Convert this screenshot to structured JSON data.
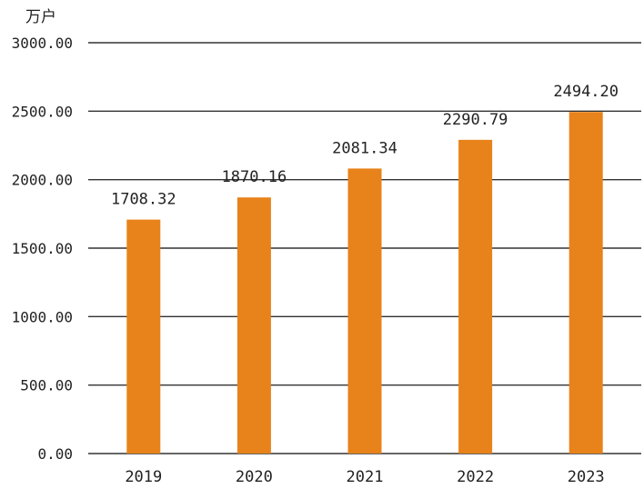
{
  "chart_data": {
    "type": "bar",
    "unit": "万户",
    "categories": [
      "2019",
      "2020",
      "2021",
      "2022",
      "2023"
    ],
    "values": [
      1708.32,
      1870.16,
      2081.34,
      2290.79,
      2494.2
    ],
    "value_labels": [
      "1708.32",
      "1870.16",
      "2081.34",
      "2290.79",
      "2494.20"
    ],
    "ylim": [
      0,
      3000
    ],
    "yticks": [
      0,
      500,
      1000,
      1500,
      2000,
      2500,
      3000
    ],
    "ytick_labels": [
      "0.00",
      "500.00",
      "1000.00",
      "1500.00",
      "2000.00",
      "2500.00",
      "3000.00"
    ],
    "grid": true,
    "bar_color": "#e8821a",
    "grid_color": "#333333"
  }
}
